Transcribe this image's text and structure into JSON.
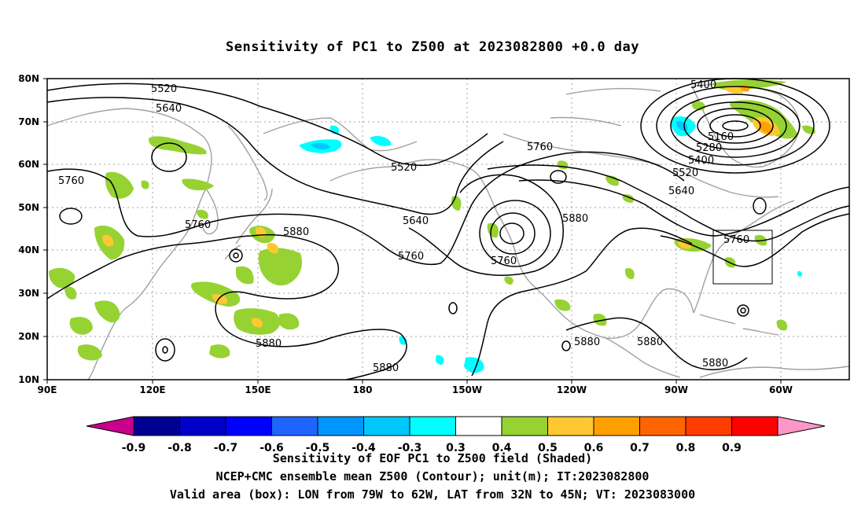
{
  "title": "Sensitivity of PC1 to Z500 at 2023082800 +0.0 day",
  "captions": [
    "Sensitivity of EOF PC1 to Z500 field (Shaded)",
    "NCEP+CMC ensemble mean Z500 (Contour); unit(m); IT:2023082800",
    "Valid area (box): LON from 79W to 62W, LAT from 32N to 45N; VT: 2023083000"
  ],
  "axes": {
    "y_ticks": [
      "80N",
      "70N",
      "60N",
      "50N",
      "40N",
      "30N",
      "20N",
      "10N"
    ],
    "x_ticks": [
      "90E",
      "120E",
      "150E",
      "180",
      "150W",
      "120W",
      "90W",
      "60W"
    ]
  },
  "colorbar": {
    "labels": [
      "-0.9",
      "-0.8",
      "-0.7",
      "-0.6",
      "-0.5",
      "-0.4",
      "-0.3",
      "0.3",
      "0.4",
      "0.5",
      "0.6",
      "0.7",
      "0.8",
      "0.9"
    ],
    "colors": [
      "#c8008c",
      "#000090",
      "#0000c8",
      "#0000ff",
      "#1e64ff",
      "#0096ff",
      "#00c8ff",
      "#00ffff",
      "#ffffff",
      "#96d232",
      "#ffc832",
      "#ffa000",
      "#ff6400",
      "#ff3c00",
      "#ff0000",
      "#ff96c8"
    ]
  },
  "contour_labels": [
    "5520",
    "5640",
    "5760",
    "5520",
    "5760",
    "5760",
    "5640",
    "5880",
    "5760",
    "5760",
    "5880",
    "5880",
    "5880",
    "5880",
    "5400",
    "5160",
    "5280",
    "5400",
    "5520",
    "5640",
    "5760",
    "5880",
    "5880"
  ],
  "valid_box": {
    "lon_from": "79W",
    "lon_to": "62W",
    "lat_from": "32N",
    "lat_to": "45N"
  }
}
